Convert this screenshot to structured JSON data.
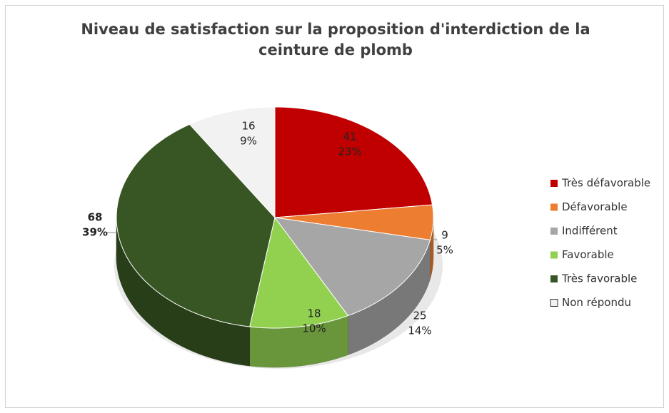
{
  "chart_data": {
    "type": "pie",
    "title": "Niveau de satisfaction sur la proposition d'interdiction de la ceinture de plomb",
    "categories": [
      "Très défavorable",
      "Défavorable",
      "Indifférent",
      "Favorable",
      "Très favorable",
      "Non répondu"
    ],
    "values": [
      41,
      9,
      25,
      18,
      68,
      16
    ],
    "percent_labels": [
      "23%",
      "5%",
      "14%",
      "10%",
      "39%",
      "9%"
    ],
    "colors": [
      "#c00000",
      "#ed7d31",
      "#a6a6a6",
      "#92d050",
      "#375623",
      "#f2f2f2"
    ],
    "legend": "right"
  }
}
